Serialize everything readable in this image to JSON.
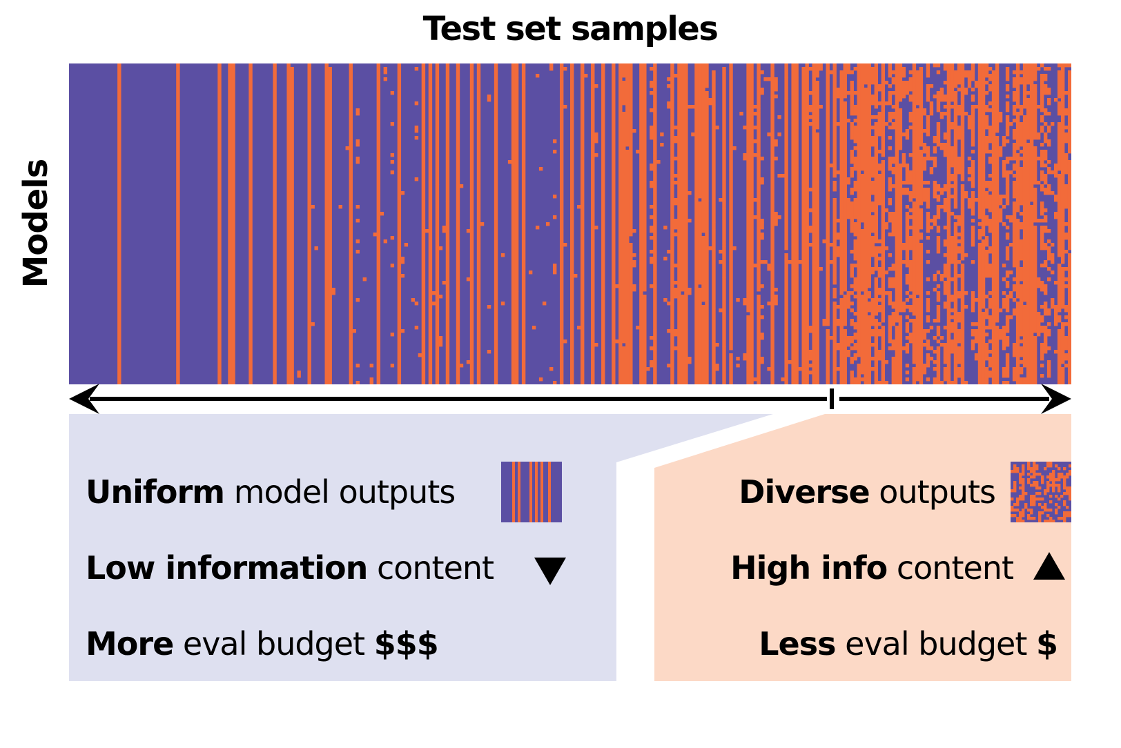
{
  "chart_data": {
    "type": "heatmap",
    "title": "Test set samples",
    "xlabel": "Test set samples",
    "ylabel": "Models",
    "description": "Binary model-by-sample outcome matrix; columns sorted from uniform (left) to diverse (right) model outputs",
    "n_rows": 93,
    "n_cols": 290,
    "colors": {
      "background": "#5B4FA3",
      "highlight": "#F26B3A"
    },
    "column_pattern": {
      "uniform_region_fraction": 0.76,
      "diverse_region_fraction": 0.24,
      "left_stripe_density": 0.15,
      "right_orange_fraction": 0.5
    },
    "legend": "none",
    "grid": false
  },
  "axis": {
    "arrow_label": "",
    "divider_position_fraction": 0.76
  },
  "left_panel": {
    "color": "#DEE0F0",
    "rows": [
      {
        "bold": "Uniform",
        "rest": " model outputs",
        "icon": "uniform-thumbnail"
      },
      {
        "bold": "Low information",
        "rest": " content",
        "icon": "triangle-down"
      },
      {
        "bold": "More",
        "rest": " eval budget ",
        "suffix_bold": "$$$"
      }
    ]
  },
  "right_panel": {
    "color": "#FCD9C6",
    "rows": [
      {
        "bold": "Diverse",
        "rest": " outputs",
        "icon": "diverse-thumbnail"
      },
      {
        "bold": "High info",
        "rest": " content",
        "icon": "triangle-up"
      },
      {
        "bold": "Less",
        "rest": " eval budget ",
        "suffix_bold": "$"
      }
    ]
  }
}
